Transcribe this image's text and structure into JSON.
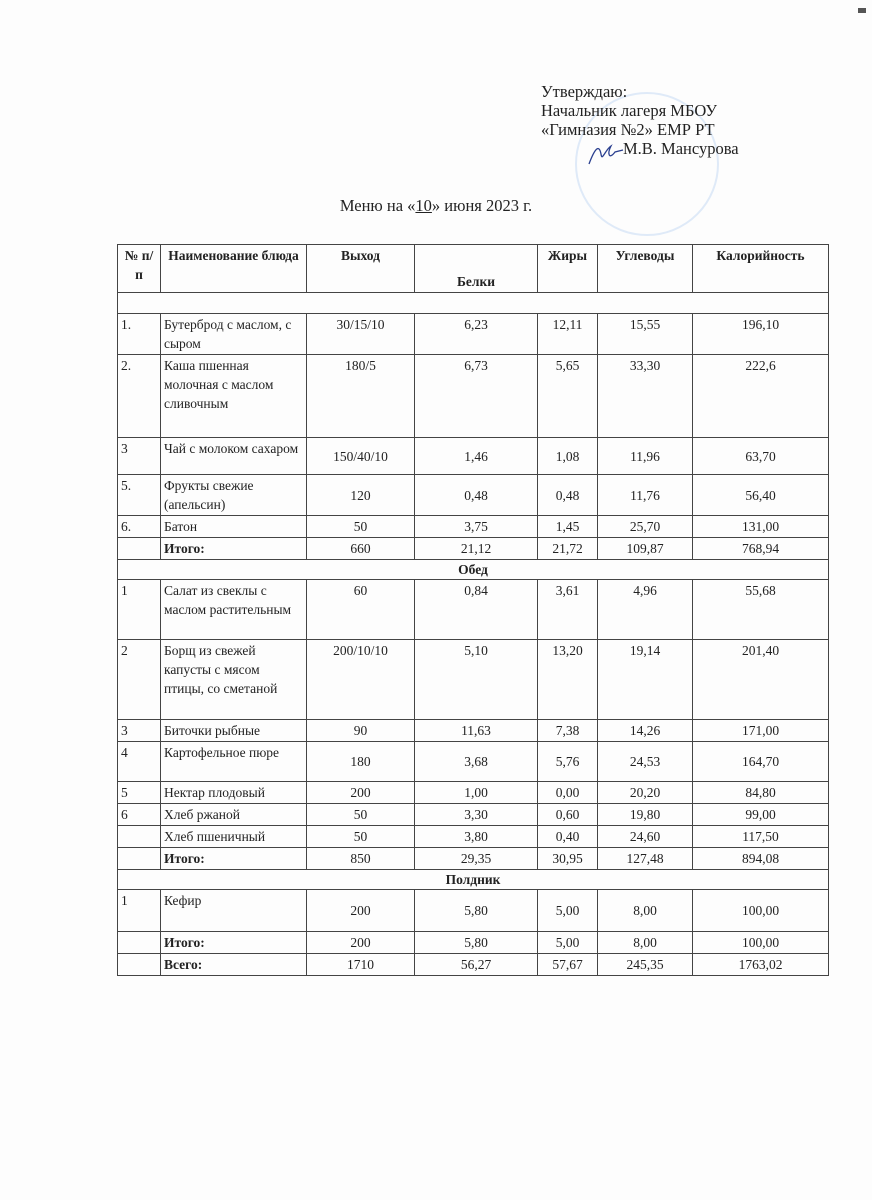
{
  "approval": {
    "line1": "Утверждаю:",
    "line2": "Начальник лагеря МБОУ",
    "line3": "«Гимназия №2» ЕМР РТ",
    "signer": "М.В. Мансурова"
  },
  "title": {
    "prefix": "Меню на «",
    "day": "10",
    "suffix": "» июня 2023 г."
  },
  "table": {
    "headers": [
      "№ п/п",
      "Наименование блюда",
      "Выход",
      "Белки",
      "Жиры",
      "Углеводы",
      "Калорийность"
    ],
    "rows": [
      {
        "type": "blank"
      },
      {
        "type": "item",
        "cells": [
          "1.",
          "Бутерброд с маслом, с сыром",
          "30/15/10",
          "6,23",
          "12,11",
          "15,55",
          "196,10"
        ]
      },
      {
        "type": "item",
        "cells": [
          "2.",
          "Каша пшенная молочная с маслом сливочным",
          "180/5",
          "6,73",
          "5,65",
          "33,30",
          "222,6"
        ]
      },
      {
        "type": "item",
        "cells": [
          "3",
          "Чай  с молоком сахаром",
          "150/40/10",
          "1,46",
          "1,08",
          "11,96",
          "63,70"
        ]
      },
      {
        "type": "item",
        "cells": [
          "5.",
          "Фрукты свежие (апельсин)",
          "120",
          "0,48",
          "0,48",
          "11,76",
          "56,40"
        ]
      },
      {
        "type": "item",
        "cells": [
          "6.",
          "Батон",
          "50",
          "3,75",
          "1,45",
          "25,70",
          "131,00"
        ]
      },
      {
        "type": "total",
        "cells": [
          "",
          "Итого:",
          "660",
          "21,12",
          "21,72",
          "109,87",
          "768,94"
        ]
      },
      {
        "type": "section",
        "label": "Обед"
      },
      {
        "type": "item",
        "cells": [
          "1",
          "Салат из свеклы с маслом растительным",
          "60",
          "0,84",
          "3,61",
          "4,96",
          "55,68"
        ]
      },
      {
        "type": "item",
        "cells": [
          "2",
          "Борщ из свежей капусты с мясом птицы, со сметаной",
          "200/10/10",
          "5,10",
          "13,20",
          "19,14",
          "201,40"
        ]
      },
      {
        "type": "item",
        "cells": [
          "3",
          "Биточки рыбные",
          "90",
          "11,63",
          "7,38",
          "14,26",
          "171,00"
        ]
      },
      {
        "type": "item",
        "cells": [
          "4",
          "Картофельное пюре",
          "180",
          "3,68",
          "5,76",
          "24,53",
          "164,70"
        ]
      },
      {
        "type": "item",
        "cells": [
          "5",
          "Нектар плодовый",
          "200",
          "1,00",
          "0,00",
          "20,20",
          "84,80"
        ]
      },
      {
        "type": "item",
        "cells": [
          "6",
          "Хлеб ржаной",
          "50",
          "3,30",
          "0,60",
          "19,80",
          "99,00"
        ]
      },
      {
        "type": "item",
        "cells": [
          "",
          "Хлеб пшеничный",
          "50",
          "3,80",
          "0,40",
          "24,60",
          "117,50"
        ]
      },
      {
        "type": "total",
        "cells": [
          "",
          "Итого:",
          "850",
          "29,35",
          "30,95",
          "127,48",
          "894,08"
        ]
      },
      {
        "type": "section",
        "label": "Полдник"
      },
      {
        "type": "item",
        "cells": [
          "1",
          "Кефир",
          "200",
          "5,80",
          "5,00",
          "8,00",
          "100,00"
        ]
      },
      {
        "type": "total",
        "cells": [
          "",
          "Итого:",
          "200",
          "5,80",
          "5,00",
          "8,00",
          "100,00"
        ]
      },
      {
        "type": "total",
        "cells": [
          "",
          "Всего:",
          "1710",
          "56,27",
          "57,67",
          "245,35",
          "1763,02"
        ]
      }
    ]
  },
  "colors": {
    "stamp": "#78aae6",
    "signature": "#2a3f8f"
  }
}
